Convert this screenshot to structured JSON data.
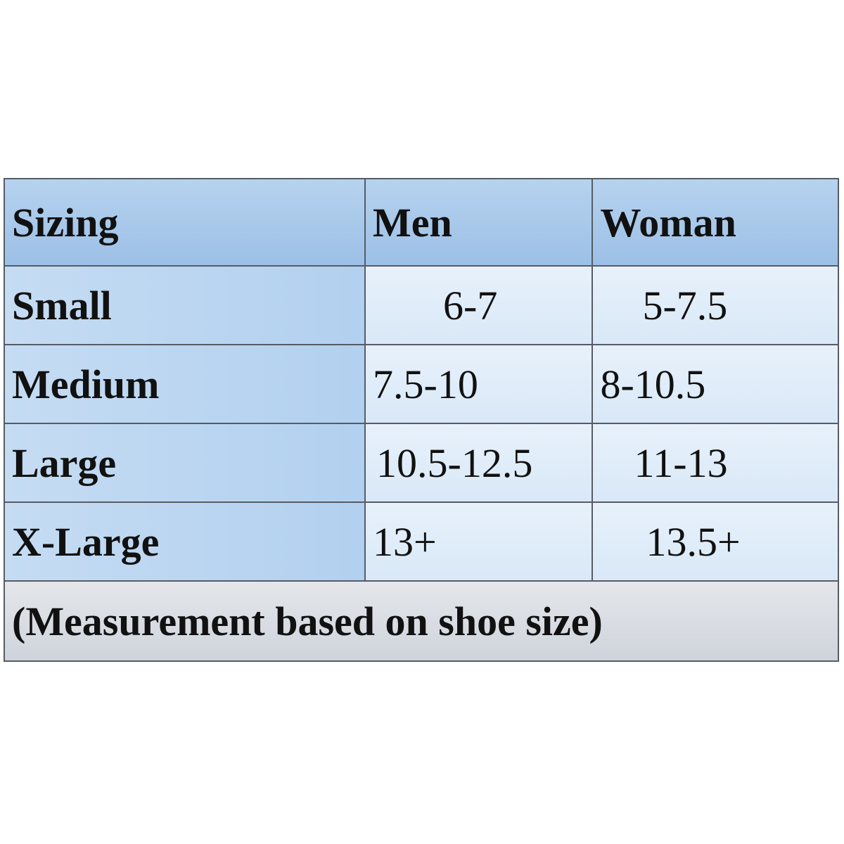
{
  "table": {
    "header": [
      "Sizing",
      "Men",
      "Woman"
    ],
    "rows": [
      [
        "Small",
        "6-7",
        "5-7.5"
      ],
      [
        "Medium",
        "7.5-10",
        "8-10.5"
      ],
      [
        "Large",
        "10.5-12.5",
        "11-13"
      ],
      [
        "X-Large",
        "13+",
        "13.5+"
      ]
    ],
    "footer": "(Measurement based on shoe size)"
  }
}
